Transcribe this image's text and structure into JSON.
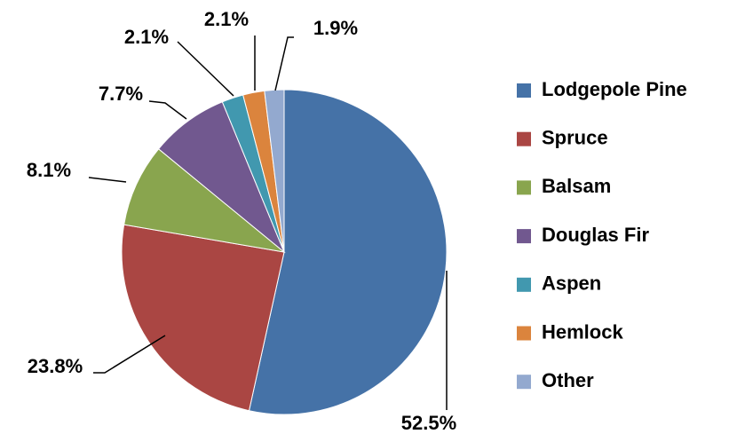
{
  "chart_data": {
    "type": "pie",
    "categories": [
      "Lodgepole Pine",
      "Spruce",
      "Balsam",
      "Douglas Fir",
      "Aspen",
      "Hemlock",
      "Other"
    ],
    "values": [
      52.5,
      23.8,
      8.1,
      7.7,
      2.1,
      2.1,
      1.9
    ],
    "value_labels": [
      "52.5%",
      "23.8%",
      "8.1%",
      "7.7%",
      "2.1%",
      "2.1%",
      "1.9%"
    ],
    "colors": [
      "#4572a7",
      "#aa4643",
      "#89a54e",
      "#71588f",
      "#4198af",
      "#db843d",
      "#93a9cf"
    ],
    "legend": "right"
  }
}
